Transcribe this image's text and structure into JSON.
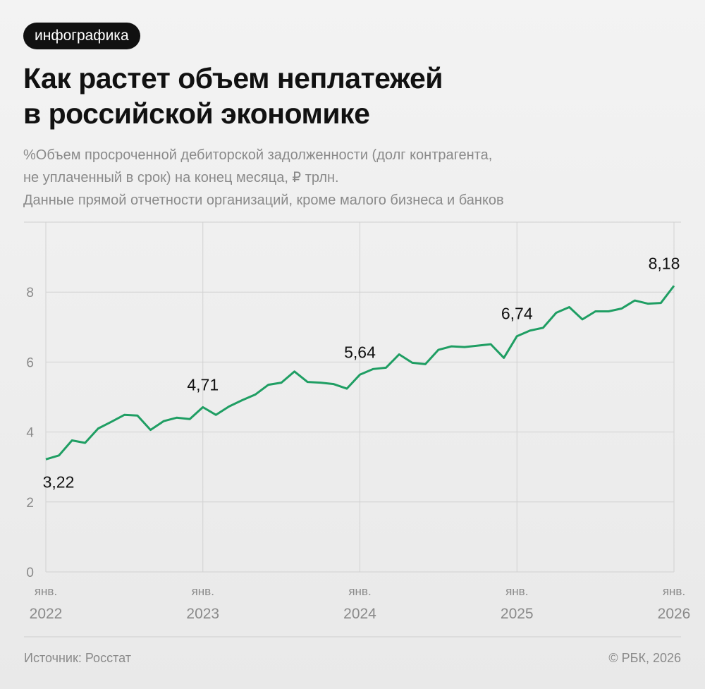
{
  "badge": "инфографика",
  "chart_data": {
    "type": "line",
    "title": [
      "Как растет объем неплатежей",
      "в российской экономике"
    ],
    "subtitle": [
      "%Объем просроченной дебиторской задолженности (долг контрагента,",
      "не уплаченный в срок) на конец месяца, ₽ трлн.",
      "Данные прямой отчетности организаций, кроме малого бизнеса и банков"
    ],
    "categories": [
      "янв. 2022",
      null,
      null,
      null,
      null,
      null,
      null,
      null,
      null,
      null,
      null,
      null,
      "янв. 2023",
      null,
      null,
      null,
      null,
      null,
      null,
      null,
      null,
      null,
      null,
      null,
      "янв. 2024",
      null,
      null,
      null,
      null,
      null,
      null,
      null,
      null,
      null,
      null,
      null,
      "янв. 2025",
      null,
      null,
      null,
      null,
      null,
      null,
      null,
      null,
      null,
      null,
      null,
      "янв. 2026"
    ],
    "series": [
      {
        "color": "#1f9e63",
        "values": [
          3.22,
          3.33,
          3.76,
          3.69,
          4.1,
          4.29,
          4.49,
          4.47,
          4.06,
          4.31,
          4.41,
          4.37,
          4.71,
          4.49,
          4.73,
          4.91,
          5.07,
          5.35,
          5.41,
          5.73,
          5.43,
          5.41,
          5.37,
          5.24,
          5.64,
          5.8,
          5.84,
          6.22,
          5.98,
          5.94,
          6.35,
          6.45,
          6.43,
          6.47,
          6.51,
          6.12,
          6.74,
          6.9,
          6.98,
          7.41,
          7.57,
          7.22,
          7.45,
          7.45,
          7.53,
          7.76,
          7.67,
          7.69,
          8.18
        ],
        "value_labels": [
          "3,22",
          null,
          null,
          null,
          null,
          null,
          null,
          null,
          null,
          null,
          null,
          null,
          "4,71",
          null,
          null,
          null,
          null,
          null,
          null,
          null,
          null,
          null,
          null,
          null,
          "5,64",
          null,
          null,
          null,
          null,
          null,
          null,
          null,
          null,
          null,
          null,
          null,
          "6,74",
          null,
          null,
          null,
          null,
          null,
          null,
          null,
          null,
          null,
          null,
          null,
          "8,18"
        ]
      }
    ],
    "ylim": [
      0,
      10
    ],
    "yticks": [
      0,
      2,
      4,
      6,
      8
    ],
    "grid": true
  },
  "footer": {
    "source": "Источник: Росстат",
    "credit": "© РБК, 2026"
  }
}
